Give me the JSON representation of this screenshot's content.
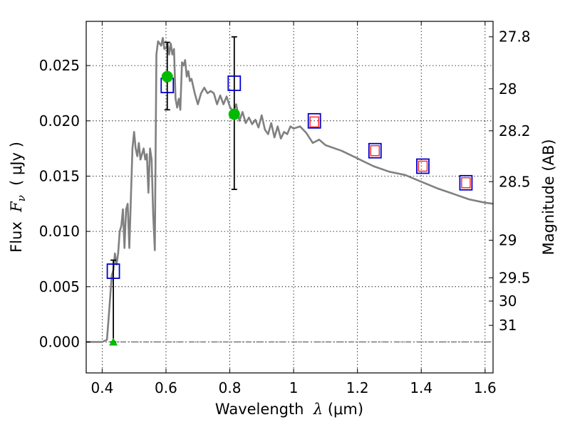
{
  "chart_data": {
    "type": "scatter",
    "xlabel_prefix": "Wavelength  ",
    "xlabel_var": "λ",
    "xlabel_unit": " (μm)",
    "ylabel_prefix": "Flux  ",
    "ylabel_var": "F",
    "ylabel_sub": "ν",
    "ylabel_unit": "  ( μJy )",
    "y2label": "Magnitude (AB)",
    "xlim": [
      0.35,
      1.625
    ],
    "ylim": [
      -0.0028,
      0.029
    ],
    "grid": true,
    "x_ticks": [
      0.4,
      0.6,
      0.8,
      1.0,
      1.2,
      1.4,
      1.6
    ],
    "x_tick_labels": [
      "0.4",
      "0.6",
      "0.8",
      "1",
      "1.2",
      "1.4",
      "1.6"
    ],
    "y_ticks": [
      0.0,
      0.005,
      0.01,
      0.015,
      0.02,
      0.025
    ],
    "y_tick_labels": [
      "0.000",
      "0.005",
      "0.010",
      "0.015",
      "0.020",
      "0.025"
    ],
    "y2_ticks": [
      {
        "flux": 0.0276,
        "label": "27.8"
      },
      {
        "flux": 0.0229,
        "label": "28"
      },
      {
        "flux": 0.0191,
        "label": "28.2"
      },
      {
        "flux": 0.0145,
        "label": "28.5"
      },
      {
        "flux": 0.0092,
        "label": "29"
      },
      {
        "flux": 0.0058,
        "label": "29.5"
      },
      {
        "flux": 0.0037,
        "label": "30"
      },
      {
        "flux": 0.0015,
        "label": "31"
      }
    ],
    "zero_line": 0.0,
    "series": [
      {
        "kind": "model_sed",
        "color": "#808080",
        "x": [
          0.35,
          0.4,
          0.415,
          0.42,
          0.425,
          0.43,
          0.435,
          0.44,
          0.445,
          0.45,
          0.455,
          0.46,
          0.465,
          0.47,
          0.475,
          0.48,
          0.485,
          0.49,
          0.495,
          0.5,
          0.505,
          0.51,
          0.515,
          0.52,
          0.525,
          0.53,
          0.535,
          0.54,
          0.545,
          0.55,
          0.555,
          0.56,
          0.565,
          0.57,
          0.575,
          0.58,
          0.585,
          0.59,
          0.595,
          0.6,
          0.605,
          0.61,
          0.615,
          0.62,
          0.625,
          0.63,
          0.635,
          0.64,
          0.645,
          0.65,
          0.655,
          0.66,
          0.665,
          0.67,
          0.675,
          0.68,
          0.69,
          0.7,
          0.71,
          0.72,
          0.73,
          0.74,
          0.75,
          0.76,
          0.77,
          0.78,
          0.79,
          0.8,
          0.81,
          0.82,
          0.83,
          0.84,
          0.85,
          0.86,
          0.87,
          0.88,
          0.89,
          0.9,
          0.91,
          0.92,
          0.93,
          0.94,
          0.95,
          0.96,
          0.97,
          0.98,
          0.99,
          1.0,
          1.02,
          1.04,
          1.06,
          1.08,
          1.1,
          1.15,
          1.2,
          1.25,
          1.3,
          1.35,
          1.4,
          1.45,
          1.5,
          1.55,
          1.6,
          1.625
        ],
        "y": [
          0.0,
          0.0,
          0.0002,
          0.002,
          0.004,
          0.006,
          0.0065,
          0.008,
          0.007,
          0.008,
          0.01,
          0.0105,
          0.012,
          0.0085,
          0.012,
          0.0125,
          0.0085,
          0.013,
          0.0175,
          0.019,
          0.0175,
          0.0168,
          0.018,
          0.0165,
          0.017,
          0.0175,
          0.0165,
          0.017,
          0.0135,
          0.0175,
          0.0165,
          0.0115,
          0.0083,
          0.026,
          0.0272,
          0.027,
          0.0268,
          0.0275,
          0.0265,
          0.0266,
          0.027,
          0.026,
          0.027,
          0.026,
          0.0265,
          0.022,
          0.0212,
          0.022,
          0.021,
          0.0253,
          0.025,
          0.0255,
          0.024,
          0.0245,
          0.0236,
          0.0238,
          0.0225,
          0.0215,
          0.0225,
          0.023,
          0.0225,
          0.0227,
          0.0225,
          0.0215,
          0.0223,
          0.0215,
          0.0222,
          0.0213,
          0.0208,
          0.0215,
          0.02,
          0.0208,
          0.0198,
          0.0203,
          0.0197,
          0.0201,
          0.0194,
          0.0205,
          0.0192,
          0.0188,
          0.0198,
          0.0185,
          0.0195,
          0.0184,
          0.019,
          0.0188,
          0.0195,
          0.0193,
          0.0195,
          0.0189,
          0.018,
          0.0183,
          0.0178,
          0.0173,
          0.0166,
          0.0159,
          0.0154,
          0.0151,
          0.0145,
          0.0139,
          0.0134,
          0.0129,
          0.0126,
          0.0125
        ]
      },
      {
        "kind": "observed_blue_squares",
        "color": "#0000cc",
        "x": [
          0.435,
          0.604,
          0.814,
          1.065,
          1.255,
          1.405,
          1.54
        ],
        "y": [
          0.0064,
          0.0232,
          0.0234,
          0.02,
          0.0173,
          0.0159,
          0.0144
        ]
      },
      {
        "kind": "model_red_squares",
        "color": "#ff2222",
        "x": [
          1.065,
          1.255,
          1.405,
          1.54
        ],
        "y": [
          0.0199,
          0.0173,
          0.0159,
          0.0144
        ]
      },
      {
        "kind": "green_points",
        "color": "#00bb00",
        "x": [
          0.604,
          0.814
        ],
        "y": [
          0.024,
          0.0206
        ]
      },
      {
        "kind": "green_upper_limit",
        "color": "#00bb00",
        "x": [
          0.435
        ],
        "y": [
          0.0
        ]
      }
    ],
    "error_bars": [
      {
        "x": 0.435,
        "ylow": 0.0,
        "yhigh": 0.0074
      },
      {
        "x": 0.604,
        "ylow": 0.021,
        "yhigh": 0.0271
      },
      {
        "x": 0.814,
        "ylow": 0.0138,
        "yhigh": 0.0276
      }
    ]
  }
}
